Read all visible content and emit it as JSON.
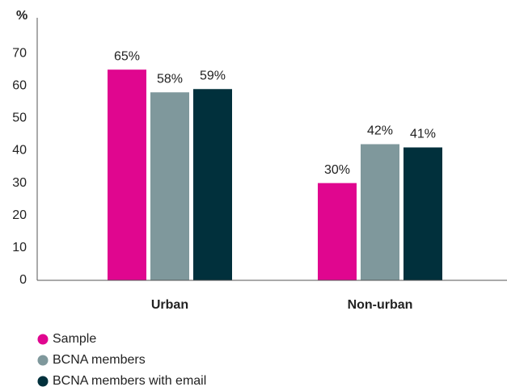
{
  "chart_data": {
    "type": "bar",
    "y_label": "%",
    "categories": [
      "Urban",
      "Non-urban"
    ],
    "series": [
      {
        "name": "Sample",
        "color": "#e0068f",
        "values": [
          65,
          30
        ],
        "value_labels": [
          "65%",
          "30%"
        ]
      },
      {
        "name": "BCNA members",
        "color": "#7f989c",
        "values": [
          58,
          42
        ],
        "value_labels": [
          "58%",
          "42%"
        ]
      },
      {
        "name": "BCNA members with email",
        "color": "#01303c",
        "values": [
          59,
          41
        ],
        "value_labels": [
          "59%",
          "41%"
        ]
      }
    ],
    "ylim": [
      0,
      80
    ],
    "yticks": [
      0,
      10,
      20,
      30,
      40,
      50,
      60,
      70
    ],
    "grid": false,
    "legend": "bottom"
  }
}
